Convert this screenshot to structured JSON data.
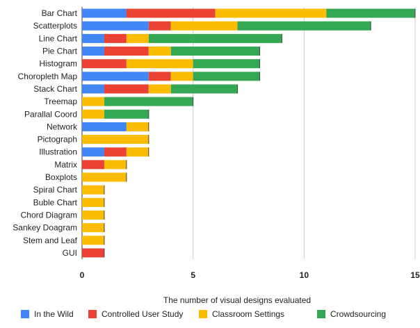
{
  "chart_data": {
    "type": "bar",
    "orientation": "horizontal",
    "stacked": true,
    "categories": [
      "Bar Chart",
      "Scatterplots",
      "Line Chart",
      "Pie Chart",
      "Histogram",
      "Choropleth Map",
      "Stack Chart",
      "Treemap",
      "Parallal Coord",
      "Network",
      "Pictograph",
      "Illustration",
      "Matrix",
      "Boxplots",
      "Spiral Chart",
      "Buble Chart",
      "Chord Diagram",
      "Sankey Doagram",
      "Stem and Leaf",
      "GUI"
    ],
    "series": [
      {
        "name": "In the Wild",
        "color": "#4285f4",
        "values": [
          2,
          3,
          1,
          1,
          0,
          3,
          1,
          0,
          0,
          2,
          0,
          1,
          0,
          0,
          0,
          0,
          0,
          0,
          0,
          0
        ]
      },
      {
        "name": "Controlled User Study",
        "color": "#ea4335",
        "values": [
          4,
          1,
          1,
          2,
          2,
          1,
          2,
          0,
          0,
          0,
          0,
          1,
          1,
          0,
          0,
          0,
          0,
          0,
          0,
          1
        ]
      },
      {
        "name": "Classroom Settings",
        "color": "#fbbc04",
        "values": [
          5,
          3,
          1,
          1,
          3,
          1,
          1,
          1,
          1,
          1,
          3,
          1,
          1,
          2,
          1,
          1,
          1,
          1,
          1,
          0
        ]
      },
      {
        "name": "Crowdsourcing",
        "color": "#34a853",
        "values": [
          4,
          6,
          6,
          4,
          3,
          3,
          3,
          4,
          2,
          0,
          0,
          0,
          0,
          0,
          0,
          0,
          0,
          0,
          0,
          0
        ]
      }
    ],
    "xlabel": "The number of visual designs evaluated",
    "xlim": [
      0,
      15
    ],
    "xticks": [
      "0",
      "5",
      "10",
      "15"
    ],
    "grid": true,
    "legend_position": "bottom"
  }
}
